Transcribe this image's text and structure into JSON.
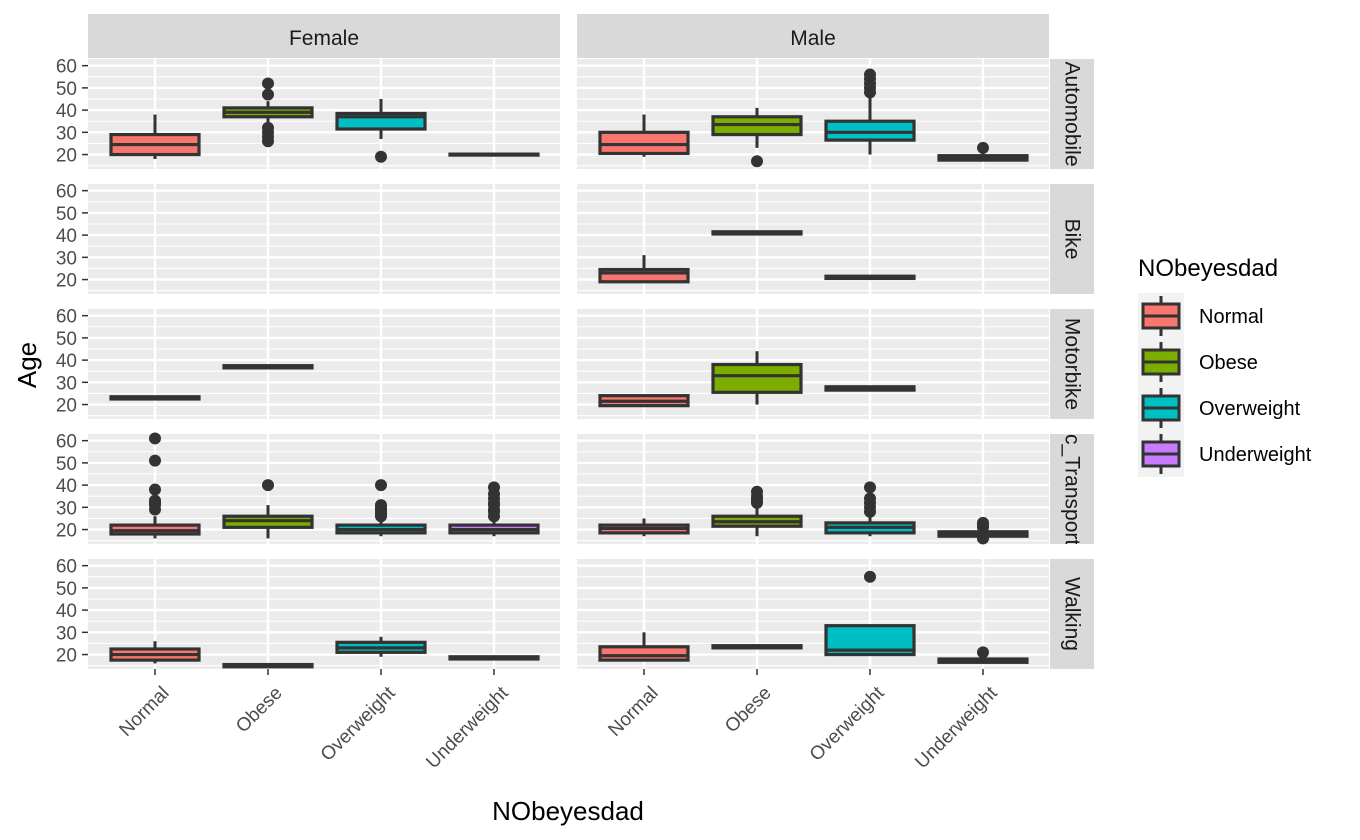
{
  "chart_data": {
    "type": "box",
    "xlabel": "NObeyesdad",
    "ylabel": "Age",
    "legend_title": "NObeyesdad",
    "legend_position": "right",
    "grid": true,
    "categories": [
      "Normal",
      "Obese",
      "Overweight",
      "Underweight"
    ],
    "colors": {
      "Normal": "#F8766D",
      "Obese": "#7CAE00",
      "Overweight": "#00BFC4",
      "Underweight": "#C77CFF"
    },
    "col_facets": [
      "Female",
      "Male"
    ],
    "row_facets": [
      "Automobile",
      "Bike",
      "Motorbike",
      "Public_Transportation",
      "Walking"
    ],
    "yticks": [
      20,
      30,
      40,
      50,
      60
    ],
    "ylim": [
      13.5,
      63
    ],
    "boxes": [
      {
        "row": "Automobile",
        "col": "Female",
        "cat": "Normal",
        "ymin": 18,
        "q1": 20,
        "med": 24.5,
        "q3": 29,
        "ymax": 38,
        "outliers": []
      },
      {
        "row": "Automobile",
        "col": "Female",
        "cat": "Obese",
        "ymin": 33,
        "q1": 37,
        "med": 39,
        "q3": 41,
        "ymax": 44,
        "outliers": [
          26,
          28,
          30,
          32,
          47,
          52
        ]
      },
      {
        "row": "Automobile",
        "col": "Female",
        "cat": "Overweight",
        "ymin": 27,
        "q1": 31.5,
        "med": 37,
        "q3": 38.5,
        "ymax": 45,
        "outliers": [
          19
        ]
      },
      {
        "row": "Automobile",
        "col": "Female",
        "cat": "Underweight",
        "ymin": 19.5,
        "q1": 19.8,
        "med": 20,
        "q3": 20.2,
        "ymax": 20.5,
        "outliers": []
      },
      {
        "row": "Automobile",
        "col": "Male",
        "cat": "Normal",
        "ymin": 19,
        "q1": 20.5,
        "med": 24.5,
        "q3": 30,
        "ymax": 38,
        "outliers": []
      },
      {
        "row": "Automobile",
        "col": "Male",
        "cat": "Obese",
        "ymin": 23,
        "q1": 29,
        "med": 33.5,
        "q3": 37,
        "ymax": 41,
        "outliers": [
          17
        ]
      },
      {
        "row": "Automobile",
        "col": "Male",
        "cat": "Overweight",
        "ymin": 20,
        "q1": 26.5,
        "med": 30,
        "q3": 35,
        "ymax": 46,
        "outliers": [
          48,
          50,
          52,
          54,
          56
        ]
      },
      {
        "row": "Automobile",
        "col": "Male",
        "cat": "Underweight",
        "ymin": 17,
        "q1": 17.5,
        "med": 18.5,
        "q3": 19.5,
        "ymax": 21,
        "outliers": [
          23
        ]
      },
      {
        "row": "Bike",
        "col": "Male",
        "cat": "Normal",
        "ymin": 19,
        "q1": 19,
        "med": 23,
        "q3": 24.5,
        "ymax": 31,
        "outliers": []
      },
      {
        "row": "Bike",
        "col": "Male",
        "cat": "Obese",
        "ymin": 40.5,
        "q1": 40.5,
        "med": 41,
        "q3": 41.5,
        "ymax": 41.5,
        "outliers": []
      },
      {
        "row": "Bike",
        "col": "Male",
        "cat": "Overweight",
        "ymin": 20.5,
        "q1": 20.5,
        "med": 21,
        "q3": 21.5,
        "ymax": 21.5,
        "outliers": []
      },
      {
        "row": "Motorbike",
        "col": "Female",
        "cat": "Normal",
        "ymin": 22.5,
        "q1": 22.5,
        "med": 23,
        "q3": 23.5,
        "ymax": 23.5,
        "outliers": []
      },
      {
        "row": "Motorbike",
        "col": "Female",
        "cat": "Obese",
        "ymin": 36.5,
        "q1": 36.5,
        "med": 37,
        "q3": 37.5,
        "ymax": 37.5,
        "outliers": []
      },
      {
        "row": "Motorbike",
        "col": "Male",
        "cat": "Normal",
        "ymin": 19,
        "q1": 19.5,
        "med": 21.5,
        "q3": 24,
        "ymax": 24,
        "outliers": []
      },
      {
        "row": "Motorbike",
        "col": "Male",
        "cat": "Obese",
        "ymin": 20,
        "q1": 25.5,
        "med": 33,
        "q3": 38,
        "ymax": 44,
        "outliers": []
      },
      {
        "row": "Motorbike",
        "col": "Male",
        "cat": "Overweight",
        "ymin": 26,
        "q1": 26.5,
        "med": 27,
        "q3": 28,
        "ymax": 28,
        "outliers": []
      },
      {
        "row": "Public_Transportation",
        "col": "Female",
        "cat": "Normal",
        "ymin": 16,
        "q1": 18,
        "med": 19.5,
        "q3": 22,
        "ymax": 26,
        "outliers": [
          29,
          31,
          32,
          33,
          38,
          51,
          61
        ]
      },
      {
        "row": "Public_Transportation",
        "col": "Female",
        "cat": "Obese",
        "ymin": 16,
        "q1": 21,
        "med": 24,
        "q3": 26,
        "ymax": 31,
        "outliers": [
          40
        ]
      },
      {
        "row": "Public_Transportation",
        "col": "Female",
        "cat": "Overweight",
        "ymin": 17,
        "q1": 18.5,
        "med": 20,
        "q3": 22,
        "ymax": 25,
        "outliers": [
          26,
          27,
          28,
          29,
          30,
          31,
          40
        ]
      },
      {
        "row": "Public_Transportation",
        "col": "Female",
        "cat": "Underweight",
        "ymin": 17,
        "q1": 18.5,
        "med": 20,
        "q3": 22,
        "ymax": 25,
        "outliers": [
          26,
          28,
          29,
          31,
          32,
          34,
          36,
          39
        ]
      },
      {
        "row": "Public_Transportation",
        "col": "Male",
        "cat": "Normal",
        "ymin": 17,
        "q1": 18.5,
        "med": 20.5,
        "q3": 22,
        "ymax": 25,
        "outliers": []
      },
      {
        "row": "Public_Transportation",
        "col": "Male",
        "cat": "Obese",
        "ymin": 17,
        "q1": 21.5,
        "med": 23.5,
        "q3": 26,
        "ymax": 31,
        "outliers": [
          32,
          33,
          34,
          35,
          37
        ]
      },
      {
        "row": "Public_Transportation",
        "col": "Male",
        "cat": "Overweight",
        "ymin": 17,
        "q1": 18.5,
        "med": 21,
        "q3": 23,
        "ymax": 27,
        "outliers": [
          28,
          30,
          32,
          34,
          39
        ]
      },
      {
        "row": "Public_Transportation",
        "col": "Male",
        "cat": "Underweight",
        "ymin": 16.5,
        "q1": 17,
        "med": 18,
        "q3": 19,
        "ymax": 20.5,
        "outliers": [
          16,
          21,
          22,
          23
        ]
      },
      {
        "row": "Walking",
        "col": "Female",
        "cat": "Normal",
        "ymin": 16,
        "q1": 17.5,
        "med": 20,
        "q3": 22.5,
        "ymax": 26,
        "outliers": []
      },
      {
        "row": "Walking",
        "col": "Female",
        "cat": "Obese",
        "ymin": 14.5,
        "q1": 14.5,
        "med": 15,
        "q3": 15.5,
        "ymax": 15.5,
        "outliers": []
      },
      {
        "row": "Walking",
        "col": "Female",
        "cat": "Overweight",
        "ymin": 19,
        "q1": 21,
        "med": 23,
        "q3": 25.5,
        "ymax": 28,
        "outliers": []
      },
      {
        "row": "Walking",
        "col": "Female",
        "cat": "Underweight",
        "ymin": 18,
        "q1": 18,
        "med": 18.5,
        "q3": 19,
        "ymax": 19,
        "outliers": []
      },
      {
        "row": "Walking",
        "col": "Male",
        "cat": "Normal",
        "ymin": 17,
        "q1": 17.5,
        "med": 19.5,
        "q3": 23.5,
        "ymax": 30,
        "outliers": []
      },
      {
        "row": "Walking",
        "col": "Male",
        "cat": "Obese",
        "ymin": 23,
        "q1": 23,
        "med": 23.5,
        "q3": 24,
        "ymax": 24,
        "outliers": []
      },
      {
        "row": "Walking",
        "col": "Male",
        "cat": "Overweight",
        "ymin": 19.5,
        "q1": 20,
        "med": 22,
        "q3": 33,
        "ymax": 33,
        "outliers": [
          55
        ]
      },
      {
        "row": "Walking",
        "col": "Male",
        "cat": "Underweight",
        "ymin": 16,
        "q1": 16.5,
        "med": 17,
        "q3": 18,
        "ymax": 19,
        "outliers": [
          21
        ]
      }
    ]
  }
}
